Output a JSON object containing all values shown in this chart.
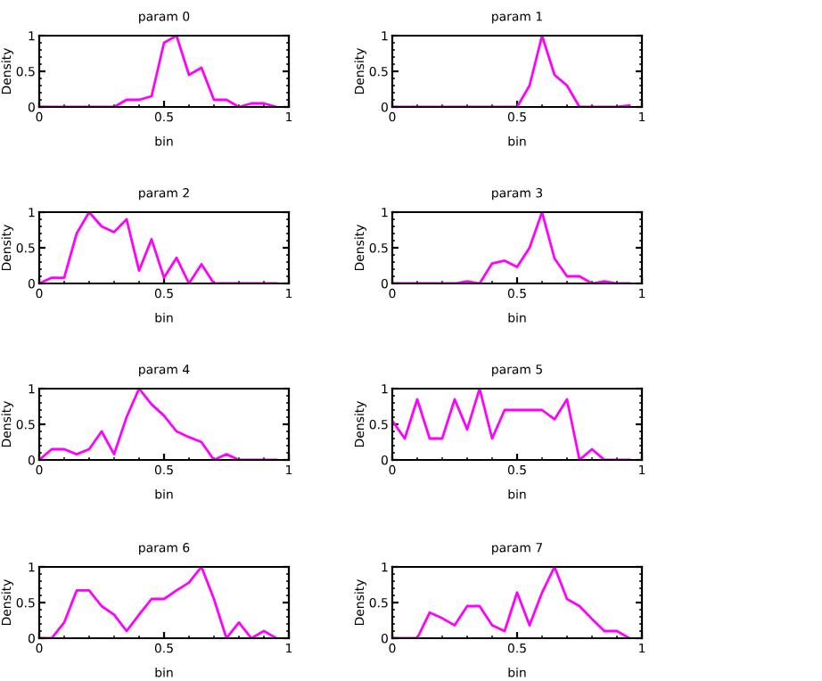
{
  "chart_data": [
    {
      "type": "line",
      "title": "param 0",
      "xlabel": "bin",
      "ylabel": "Density",
      "color": "#ff00ff",
      "xlim": [
        0,
        1
      ],
      "ylim": [
        0,
        1
      ],
      "xticks": [
        0,
        0.5,
        1
      ],
      "yticks": [
        0,
        0.5,
        1
      ],
      "grid": false,
      "x": [
        0,
        0.05,
        0.1,
        0.15,
        0.2,
        0.25,
        0.3,
        0.35,
        0.4,
        0.45,
        0.5,
        0.55,
        0.6,
        0.65,
        0.7,
        0.75,
        0.8,
        0.85,
        0.9,
        0.95
      ],
      "values": [
        0,
        0,
        0,
        0,
        0,
        0,
        0,
        0.1,
        0.1,
        0.15,
        0.9,
        1,
        0.45,
        0.55,
        0.1,
        0.1,
        0,
        0.05,
        0.05,
        0
      ]
    },
    {
      "type": "line",
      "title": "param 1",
      "xlabel": "bin",
      "ylabel": "Density",
      "color": "#ff00ff",
      "xlim": [
        0,
        1
      ],
      "ylim": [
        0,
        1
      ],
      "xticks": [
        0,
        0.5,
        1
      ],
      "yticks": [
        0,
        0.5,
        1
      ],
      "grid": false,
      "x": [
        0,
        0.05,
        0.1,
        0.15,
        0.2,
        0.25,
        0.3,
        0.35,
        0.4,
        0.45,
        0.5,
        0.55,
        0.6,
        0.65,
        0.7,
        0.75,
        0.8,
        0.85,
        0.9,
        0.95
      ],
      "values": [
        0,
        0,
        0,
        0,
        0,
        0,
        0,
        0,
        0,
        0,
        0,
        0.3,
        1,
        0.45,
        0.3,
        0,
        0,
        0,
        0,
        0.02
      ]
    },
    {
      "type": "line",
      "title": "param 2",
      "xlabel": "bin",
      "ylabel": "Density",
      "color": "#ff00ff",
      "xlim": [
        0,
        1
      ],
      "ylim": [
        0,
        1
      ],
      "xticks": [
        0,
        0.5,
        1
      ],
      "yticks": [
        0,
        0.5,
        1
      ],
      "grid": false,
      "x": [
        0,
        0.05,
        0.1,
        0.15,
        0.2,
        0.25,
        0.3,
        0.35,
        0.4,
        0.45,
        0.5,
        0.55,
        0.6,
        0.65,
        0.7,
        0.75,
        0.8,
        0.85,
        0.9,
        0.95
      ],
      "values": [
        0,
        0.08,
        0.08,
        0.7,
        1,
        0.8,
        0.72,
        0.9,
        0.18,
        0.62,
        0.08,
        0.36,
        0,
        0.27,
        0,
        0,
        0,
        0,
        0,
        0
      ]
    },
    {
      "type": "line",
      "title": "param 3",
      "xlabel": "bin",
      "ylabel": "Density",
      "color": "#ff00ff",
      "xlim": [
        0,
        1
      ],
      "ylim": [
        0,
        1
      ],
      "xticks": [
        0,
        0.5,
        1
      ],
      "yticks": [
        0,
        0.5,
        1
      ],
      "grid": false,
      "x": [
        0,
        0.05,
        0.1,
        0.15,
        0.2,
        0.25,
        0.3,
        0.35,
        0.4,
        0.45,
        0.5,
        0.55,
        0.6,
        0.65,
        0.7,
        0.75,
        0.8,
        0.85,
        0.9,
        0.95
      ],
      "values": [
        0,
        0,
        0,
        0,
        0,
        0,
        0.03,
        0,
        0.28,
        0.32,
        0.23,
        0.5,
        1,
        0.35,
        0.1,
        0.1,
        0,
        0.03,
        0,
        0
      ]
    },
    {
      "type": "line",
      "title": "param 4",
      "xlabel": "bin",
      "ylabel": "Density",
      "color": "#ff00ff",
      "xlim": [
        0,
        1
      ],
      "ylim": [
        0,
        1
      ],
      "xticks": [
        0,
        0.5,
        1
      ],
      "yticks": [
        0,
        0.5,
        1
      ],
      "grid": false,
      "x": [
        0,
        0.05,
        0.1,
        0.15,
        0.2,
        0.25,
        0.3,
        0.35,
        0.4,
        0.45,
        0.5,
        0.55,
        0.6,
        0.65,
        0.7,
        0.75,
        0.8,
        0.85,
        0.9,
        0.95
      ],
      "values": [
        0,
        0.15,
        0.15,
        0.08,
        0.15,
        0.4,
        0.08,
        0.6,
        1,
        0.78,
        0.62,
        0.4,
        0.32,
        0.25,
        0,
        0.08,
        0,
        0,
        0,
        0
      ]
    },
    {
      "type": "line",
      "title": "param 5",
      "xlabel": "bin",
      "ylabel": "Density",
      "color": "#ff00ff",
      "xlim": [
        0,
        1
      ],
      "ylim": [
        0,
        1
      ],
      "xticks": [
        0,
        0.5,
        1
      ],
      "yticks": [
        0,
        0.5,
        1
      ],
      "grid": false,
      "x": [
        0,
        0.05,
        0.1,
        0.15,
        0.2,
        0.25,
        0.3,
        0.35,
        0.4,
        0.45,
        0.5,
        0.55,
        0.6,
        0.65,
        0.7,
        0.75,
        0.8,
        0.85,
        0.9,
        0.95
      ],
      "values": [
        0.55,
        0.3,
        0.85,
        0.3,
        0.3,
        0.85,
        0.43,
        1,
        0.3,
        0.7,
        0.7,
        0.7,
        0.7,
        0.57,
        0.85,
        0,
        0.15,
        0,
        0,
        0
      ]
    },
    {
      "type": "line",
      "title": "param 6",
      "xlabel": "bin",
      "ylabel": "Density",
      "color": "#ff00ff",
      "xlim": [
        0,
        1
      ],
      "ylim": [
        0,
        1
      ],
      "xticks": [
        0,
        0.5,
        1
      ],
      "yticks": [
        0,
        0.5,
        1
      ],
      "grid": false,
      "x": [
        0,
        0.05,
        0.1,
        0.15,
        0.2,
        0.25,
        0.3,
        0.35,
        0.4,
        0.45,
        0.5,
        0.55,
        0.6,
        0.65,
        0.7,
        0.75,
        0.8,
        0.85,
        0.9,
        0.95
      ],
      "values": [
        0,
        0,
        0.22,
        0.67,
        0.67,
        0.45,
        0.33,
        0.1,
        0.33,
        0.55,
        0.55,
        0.67,
        0.78,
        1,
        0.55,
        0,
        0.22,
        0,
        0.1,
        0
      ]
    },
    {
      "type": "line",
      "title": "param 7",
      "xlabel": "bin",
      "ylabel": "Density",
      "color": "#ff00ff",
      "xlim": [
        0,
        1
      ],
      "ylim": [
        0,
        1
      ],
      "xticks": [
        0,
        0.5,
        1
      ],
      "yticks": [
        0,
        0.5,
        1
      ],
      "grid": false,
      "x": [
        0,
        0.05,
        0.1,
        0.15,
        0.2,
        0.25,
        0.3,
        0.35,
        0.4,
        0.45,
        0.5,
        0.55,
        0.6,
        0.65,
        0.7,
        0.75,
        0.8,
        0.85,
        0.9,
        0.95
      ],
      "values": [
        0,
        0,
        0,
        0.36,
        0.28,
        0.18,
        0.45,
        0.45,
        0.18,
        0.1,
        0.64,
        0.18,
        0.64,
        1,
        0.55,
        0.45,
        0.27,
        0.1,
        0.1,
        0
      ]
    }
  ]
}
